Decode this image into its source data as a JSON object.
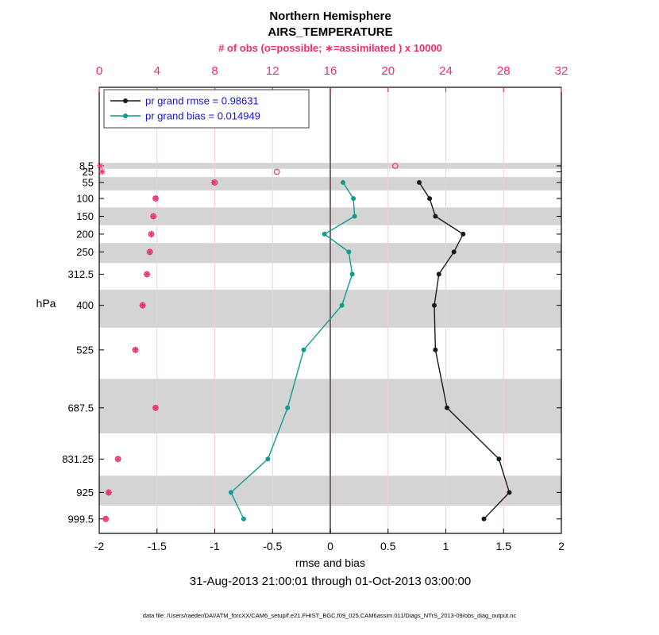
{
  "title": {
    "line1": "Northern Hemisphere",
    "line2": "AIRS_TEMPERATURE"
  },
  "top_axis": {
    "label": "# of obs (o=possible; ∗=assimilated ) x 10000",
    "ticks": [
      0,
      4,
      8,
      12,
      16,
      20,
      24,
      28,
      32
    ]
  },
  "bottom_axis": {
    "label": "rmse and bias",
    "ticks": [
      -2,
      -1.5,
      -1,
      -0.5,
      0,
      0.5,
      1,
      1.5,
      2
    ]
  },
  "y_axis": {
    "label": "hPa"
  },
  "legend": [
    {
      "label": "pr grand rmse = 0.98631"
    },
    {
      "label": "pr grand bias = 0.014949"
    }
  ],
  "subtitle": "31-Aug-2013 21:00:01 through 01-Oct-2013 03:00:00",
  "footer": "data file: /Users/raeder/DAI/ATM_forcXX/CAM6_setup/f.e21.FHIST_BGC.f09_025.CAM6assim.011/Diags_NTrS_2013-09/obs_diag_output.nc",
  "colors": {
    "obs_pink": "#ee2c6e",
    "teal": "#0f9b8e",
    "black": "#1a1a1a",
    "legend_blue": "#1414cc",
    "band_gray": "#d4d4d4",
    "grid_pink": "#f3cdd9",
    "zero_line": "#6d5a62"
  },
  "chart_data": {
    "type": "line",
    "title": "Northern Hemisphere AIRS_TEMPERATURE",
    "xlabel": "rmse and bias",
    "ylabel": "hPa",
    "rmse_axis_range": [
      -2,
      2
    ],
    "obs_axis_range": [
      0,
      32
    ],
    "obs_scale_factor": 10000,
    "pressure_range": [
      -212,
      1040
    ],
    "pressure_levels": [
      8.5,
      25,
      55,
      100,
      150,
      200,
      250,
      312.5,
      400,
      525,
      687.5,
      831.25,
      925,
      999.5
    ],
    "series": [
      {
        "id": "rmse",
        "name": "pr grand rmse",
        "grand_value": 0.98631,
        "axis": "bottom",
        "marker": "filled-circle",
        "levels": [
          55,
          100,
          150,
          200,
          250,
          312.5,
          400,
          525,
          687.5,
          831.25,
          925,
          999.5
        ],
        "values": [
          0.77,
          0.86,
          0.91,
          1.15,
          1.07,
          0.94,
          0.9,
          0.91,
          1.01,
          1.46,
          1.55,
          1.33
        ]
      },
      {
        "id": "bias",
        "name": "pr grand bias",
        "grand_value": 0.014949,
        "axis": "bottom",
        "marker": "filled-circle",
        "levels": [
          55,
          100,
          150,
          200,
          250,
          312.5,
          400,
          525,
          687.5,
          831.25,
          925,
          999.5
        ],
        "values": [
          0.11,
          0.2,
          0.21,
          -0.05,
          0.16,
          0.19,
          0.1,
          -0.23,
          -0.37,
          -0.54,
          -0.86,
          -0.75
        ]
      },
      {
        "id": "possible",
        "name": "possible obs (o) x 10000",
        "axis": "top",
        "marker": "open-circle",
        "levels": [
          8.5,
          25,
          55,
          100,
          150,
          200,
          250,
          312.5,
          400,
          525,
          687.5,
          831.25,
          925,
          999.5
        ],
        "values": [
          20.5,
          12.3,
          8.0,
          3.9,
          3.75,
          3.6,
          3.5,
          3.3,
          3.0,
          2.5,
          3.9,
          1.3,
          0.65,
          0.45
        ]
      },
      {
        "id": "assimilated",
        "name": "assimilated obs (∗) x 10000",
        "axis": "top",
        "marker": "asterisk",
        "levels": [
          8.5,
          25,
          55,
          100,
          150,
          200,
          250,
          312.5,
          400,
          525,
          687.5,
          831.25,
          925,
          999.5
        ],
        "values": [
          0.05,
          0.2,
          7.95,
          3.9,
          3.75,
          3.6,
          3.5,
          3.3,
          3.0,
          2.5,
          3.9,
          1.3,
          0.65,
          0.45
        ]
      }
    ],
    "shaded_band_pressures": [
      [
        0,
        16.75
      ],
      [
        40,
        77.5
      ],
      [
        125,
        175
      ],
      [
        225,
        281.25
      ],
      [
        356.25,
        462.5
      ],
      [
        606.25,
        759.375
      ],
      [
        878.125,
        962.25
      ]
    ],
    "zero_reference_x": 0,
    "legend_position": "top-left-inside",
    "grid": "vertical gridlines at top-axis ticks"
  }
}
